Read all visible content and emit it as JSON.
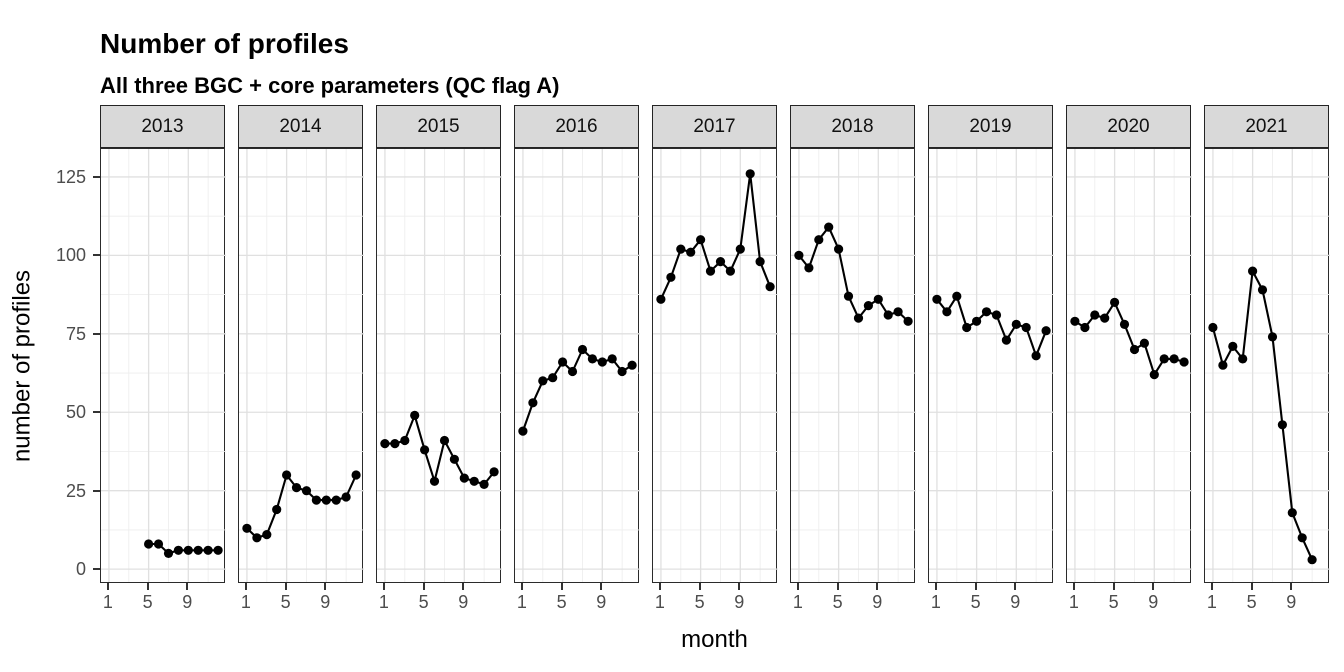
{
  "title": "Number of profiles",
  "subtitle": "All three BGC + core parameters (QC flag A)",
  "chart_data": {
    "type": "line",
    "title": "Number of profiles",
    "subtitle": "All three BGC + core parameters (QC flag A)",
    "xlabel": "month",
    "ylabel": "number of profiles",
    "facet_variable": "year",
    "x_ticks": [
      1,
      5,
      9
    ],
    "x_minor": [
      3,
      7,
      11
    ],
    "y_ticks": [
      0,
      25,
      50,
      75,
      100,
      125
    ],
    "y_minor": [
      12.5,
      37.5,
      62.5,
      87.5,
      112.5
    ],
    "xlim": [
      0.2,
      12.8
    ],
    "ylim": [
      -4.1,
      133.9
    ],
    "grid": "major-and-minor",
    "legend": "none",
    "colors": {
      "line": "#000000",
      "point": "#000000",
      "strip_bg": "#d9d9d9",
      "strip_border": "#242424",
      "panel_border": "#2b2b2b",
      "grid_major": "#e0e0e0",
      "grid_minor": "#eeeeee",
      "tick_text": "#4d4d4d"
    },
    "facets": [
      {
        "year": "2013",
        "months": [
          5,
          6,
          7,
          8,
          9,
          10,
          11,
          12
        ],
        "values": [
          8,
          8,
          5,
          6,
          6,
          6,
          6,
          6
        ]
      },
      {
        "year": "2014",
        "months": [
          1,
          2,
          3,
          4,
          5,
          6,
          7,
          8,
          9,
          10,
          11,
          12
        ],
        "values": [
          13,
          10,
          11,
          19,
          30,
          26,
          25,
          22,
          22,
          22,
          23,
          30
        ]
      },
      {
        "year": "2015",
        "months": [
          1,
          2,
          3,
          4,
          5,
          6,
          7,
          8,
          9,
          10,
          11,
          12
        ],
        "values": [
          40,
          40,
          41,
          49,
          38,
          28,
          41,
          35,
          29,
          28,
          27,
          31
        ]
      },
      {
        "year": "2016",
        "months": [
          1,
          2,
          3,
          4,
          5,
          6,
          7,
          8,
          9,
          10,
          11,
          12
        ],
        "values": [
          44,
          53,
          60,
          61,
          66,
          63,
          70,
          67,
          66,
          67,
          63,
          65
        ]
      },
      {
        "year": "2017",
        "months": [
          1,
          2,
          3,
          4,
          5,
          6,
          7,
          8,
          9,
          10,
          11,
          12
        ],
        "values": [
          86,
          93,
          102,
          101,
          105,
          95,
          98,
          95,
          102,
          126,
          98,
          90
        ]
      },
      {
        "year": "2018",
        "months": [
          1,
          2,
          3,
          4,
          5,
          6,
          7,
          8,
          9,
          10,
          11,
          12
        ],
        "values": [
          100,
          96,
          105,
          109,
          102,
          87,
          80,
          84,
          86,
          81,
          82,
          79
        ]
      },
      {
        "year": "2019",
        "months": [
          1,
          2,
          3,
          4,
          5,
          6,
          7,
          8,
          9,
          10,
          11,
          12
        ],
        "values": [
          86,
          82,
          87,
          77,
          79,
          82,
          81,
          73,
          78,
          77,
          68,
          76
        ]
      },
      {
        "year": "2020",
        "months": [
          1,
          2,
          3,
          4,
          5,
          6,
          7,
          8,
          9,
          10,
          11,
          12
        ],
        "values": [
          79,
          77,
          81,
          80,
          85,
          78,
          70,
          72,
          62,
          67,
          67,
          66
        ]
      },
      {
        "year": "2021",
        "months": [
          1,
          2,
          3,
          4,
          5,
          6,
          7,
          8,
          9,
          10,
          11
        ],
        "values": [
          77,
          65,
          71,
          67,
          95,
          89,
          74,
          46,
          18,
          10,
          3
        ]
      }
    ]
  }
}
